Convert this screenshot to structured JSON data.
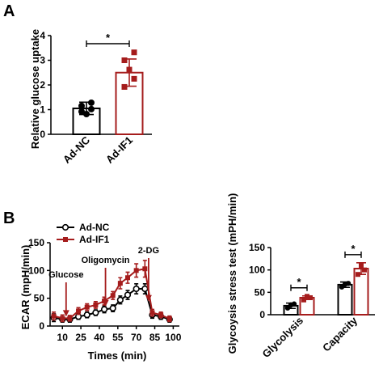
{
  "colors": {
    "control": "#000000",
    "treated": "#a51c1c"
  },
  "panels": {
    "a": "A",
    "b": "B"
  },
  "chart_data": [
    {
      "type": "bar",
      "panel": "A",
      "ylabel": "Relative glucose uptake",
      "ylim": [
        0,
        4
      ],
      "yticks": [
        "0",
        "1",
        "2",
        "3",
        "4"
      ],
      "categories": [
        "Ad-NC",
        "Ad-IF1"
      ],
      "values": [
        1.05,
        2.5
      ],
      "errors": [
        0.25,
        0.55
      ],
      "points": [
        [
          1.15,
          1.02,
          0.82,
          0.92,
          1.28
        ],
        [
          1.92,
          2.25,
          2.62,
          3.0,
          3.32
        ]
      ],
      "significance": "*"
    },
    {
      "type": "line",
      "panel": "B",
      "xlabel": "Times (min)",
      "ylabel": "ECAR (mpH/min)",
      "xlim": [
        0,
        105
      ],
      "ylim": [
        0,
        150
      ],
      "xticks": [
        "10",
        "25",
        "40",
        "55",
        "70",
        "85",
        "100"
      ],
      "yticks": [
        "0",
        "50",
        "100",
        "150"
      ],
      "series": [
        {
          "name": "Ad-NC",
          "x": [
            3,
            10,
            16,
            23,
            30,
            37,
            44,
            51,
            57,
            63,
            70,
            77,
            83,
            90,
            97
          ],
          "y": [
            15,
            12,
            12,
            17,
            20,
            24,
            30,
            32,
            47,
            56,
            67,
            67,
            20,
            17,
            12
          ],
          "err": [
            7,
            5,
            5,
            5,
            5,
            5,
            6,
            6,
            7,
            8,
            9,
            9,
            6,
            5,
            5
          ]
        },
        {
          "name": "Ad-IF1",
          "x": [
            3,
            10,
            16,
            23,
            30,
            37,
            44,
            51,
            57,
            63,
            70,
            77,
            83,
            90,
            97
          ],
          "y": [
            18,
            14,
            14,
            27,
            34,
            38,
            45,
            55,
            77,
            87,
            100,
            103,
            24,
            20,
            13
          ],
          "err": [
            7,
            6,
            5,
            6,
            6,
            6,
            7,
            7,
            10,
            10,
            12,
            15,
            6,
            5,
            5
          ]
        }
      ],
      "annotations": [
        {
          "label": "Glucose",
          "x": 13
        },
        {
          "label": "Oligomycin",
          "x": 45
        },
        {
          "label": "2-DG",
          "x": 80
        }
      ]
    },
    {
      "type": "bar",
      "panel": "B",
      "ylabel": "Glycoysis stress test (mPH/min)",
      "ylim": [
        0,
        150
      ],
      "yticks": [
        "0",
        "50",
        "100",
        "150"
      ],
      "categories": [
        "Glycolysis",
        "Capacity"
      ],
      "series": [
        {
          "name": "Ad-NC",
          "values": [
            20,
            67
          ],
          "errors": [
            6,
            6
          ],
          "points": [
            [
              15,
              24,
              22
            ],
            [
              62,
              70,
              68
            ]
          ]
        },
        {
          "name": "Ad-IF1",
          "values": [
            38,
            103
          ],
          "errors": [
            4,
            13
          ],
          "points": [
            [
              33,
              38,
              41
            ],
            [
              90,
              100,
              110
            ]
          ]
        }
      ],
      "significance": [
        "*",
        "*"
      ]
    }
  ]
}
